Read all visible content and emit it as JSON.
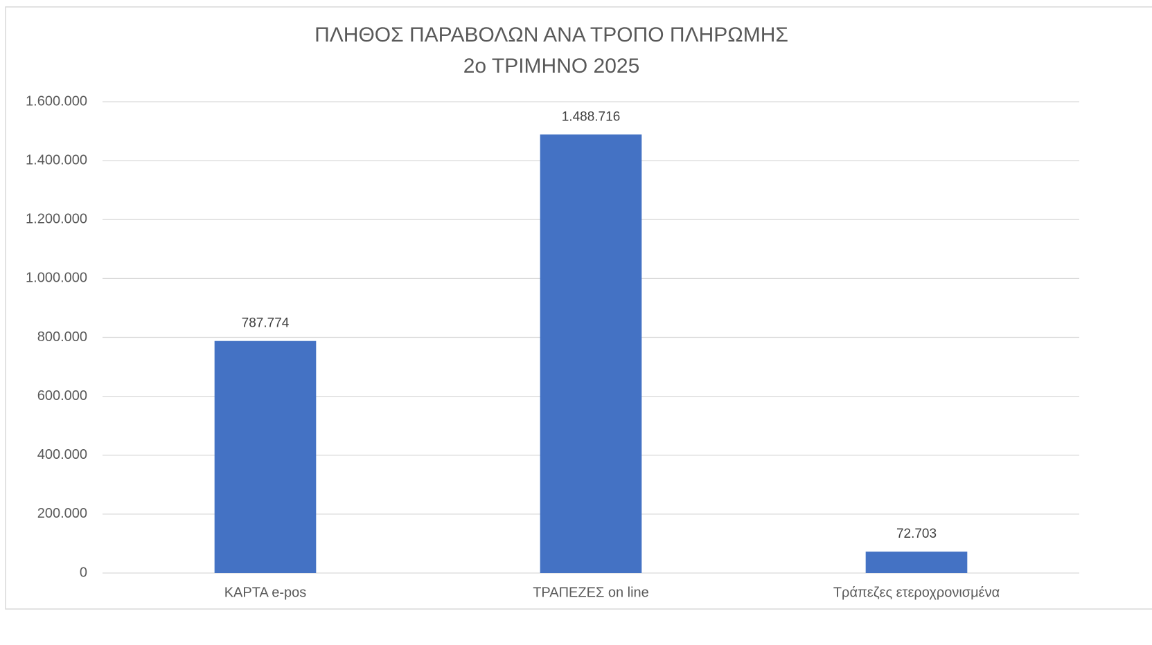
{
  "chart_data": {
    "type": "bar",
    "title": [
      "ΠΛΗΘΟΣ ΠΑΡΑΒΟΛΩΝ ΑΝΑ ΤΡΟΠΟ ΠΛΗΡΩΜΗΣ",
      "2ο ΤΡΙΜΗΝΟ 2025"
    ],
    "categories": [
      "ΚΑΡΤΑ e-pos",
      "ΤΡΑΠΕΖΕΣ on line",
      "Τράπεζες ετεροχρονισμένα"
    ],
    "values": [
      787774,
      1488716,
      72703
    ],
    "value_labels": [
      "787.774",
      "1.488.716",
      "72.703"
    ],
    "color": "#4472c4",
    "ylim": [
      0,
      1600000
    ],
    "yticks": [
      0,
      {
        "value": 200000,
        "label": "200.000"
      },
      {
        "value": 400000,
        "label": "400.000"
      },
      {
        "value": 600000,
        "label": "600.000"
      },
      {
        "value": 800000,
        "label": "800.000"
      },
      {
        "value": 1000000,
        "label": "1.000.000"
      },
      {
        "value": 1200000,
        "label": "1.200.000"
      },
      {
        "value": 1400000,
        "label": "1.400.000"
      },
      {
        "value": 1600000,
        "label": "1.600.000"
      }
    ],
    "grid": true
  }
}
